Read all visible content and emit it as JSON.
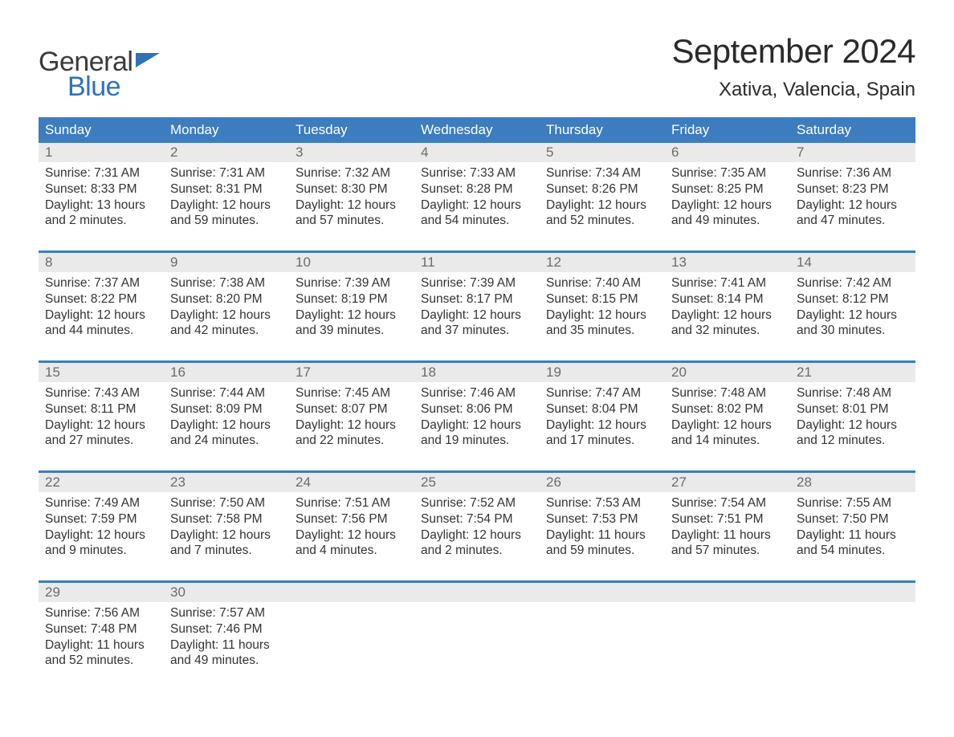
{
  "logo": {
    "word1": "General",
    "word2": "Blue",
    "flag_color": "#2f73b5"
  },
  "title": "September 2024",
  "subtitle": "Xativa, Valencia, Spain",
  "header_bg": "#3d7cbf",
  "header_fg": "#ffffff",
  "strip_bg": "#eaeaea",
  "strip_fg": "#6b6b6b",
  "text_color": "#333333",
  "day_names": [
    "Sunday",
    "Monday",
    "Tuesday",
    "Wednesday",
    "Thursday",
    "Friday",
    "Saturday"
  ],
  "weeks": [
    [
      {
        "n": "1",
        "sunrise": "7:31 AM",
        "sunset": "8:33 PM",
        "dl1": "Daylight: 13 hours",
        "dl2": "and 2 minutes."
      },
      {
        "n": "2",
        "sunrise": "7:31 AM",
        "sunset": "8:31 PM",
        "dl1": "Daylight: 12 hours",
        "dl2": "and 59 minutes."
      },
      {
        "n": "3",
        "sunrise": "7:32 AM",
        "sunset": "8:30 PM",
        "dl1": "Daylight: 12 hours",
        "dl2": "and 57 minutes."
      },
      {
        "n": "4",
        "sunrise": "7:33 AM",
        "sunset": "8:28 PM",
        "dl1": "Daylight: 12 hours",
        "dl2": "and 54 minutes."
      },
      {
        "n": "5",
        "sunrise": "7:34 AM",
        "sunset": "8:26 PM",
        "dl1": "Daylight: 12 hours",
        "dl2": "and 52 minutes."
      },
      {
        "n": "6",
        "sunrise": "7:35 AM",
        "sunset": "8:25 PM",
        "dl1": "Daylight: 12 hours",
        "dl2": "and 49 minutes."
      },
      {
        "n": "7",
        "sunrise": "7:36 AM",
        "sunset": "8:23 PM",
        "dl1": "Daylight: 12 hours",
        "dl2": "and 47 minutes."
      }
    ],
    [
      {
        "n": "8",
        "sunrise": "7:37 AM",
        "sunset": "8:22 PM",
        "dl1": "Daylight: 12 hours",
        "dl2": "and 44 minutes."
      },
      {
        "n": "9",
        "sunrise": "7:38 AM",
        "sunset": "8:20 PM",
        "dl1": "Daylight: 12 hours",
        "dl2": "and 42 minutes."
      },
      {
        "n": "10",
        "sunrise": "7:39 AM",
        "sunset": "8:19 PM",
        "dl1": "Daylight: 12 hours",
        "dl2": "and 39 minutes."
      },
      {
        "n": "11",
        "sunrise": "7:39 AM",
        "sunset": "8:17 PM",
        "dl1": "Daylight: 12 hours",
        "dl2": "and 37 minutes."
      },
      {
        "n": "12",
        "sunrise": "7:40 AM",
        "sunset": "8:15 PM",
        "dl1": "Daylight: 12 hours",
        "dl2": "and 35 minutes."
      },
      {
        "n": "13",
        "sunrise": "7:41 AM",
        "sunset": "8:14 PM",
        "dl1": "Daylight: 12 hours",
        "dl2": "and 32 minutes."
      },
      {
        "n": "14",
        "sunrise": "7:42 AM",
        "sunset": "8:12 PM",
        "dl1": "Daylight: 12 hours",
        "dl2": "and 30 minutes."
      }
    ],
    [
      {
        "n": "15",
        "sunrise": "7:43 AM",
        "sunset": "8:11 PM",
        "dl1": "Daylight: 12 hours",
        "dl2": "and 27 minutes."
      },
      {
        "n": "16",
        "sunrise": "7:44 AM",
        "sunset": "8:09 PM",
        "dl1": "Daylight: 12 hours",
        "dl2": "and 24 minutes."
      },
      {
        "n": "17",
        "sunrise": "7:45 AM",
        "sunset": "8:07 PM",
        "dl1": "Daylight: 12 hours",
        "dl2": "and 22 minutes."
      },
      {
        "n": "18",
        "sunrise": "7:46 AM",
        "sunset": "8:06 PM",
        "dl1": "Daylight: 12 hours",
        "dl2": "and 19 minutes."
      },
      {
        "n": "19",
        "sunrise": "7:47 AM",
        "sunset": "8:04 PM",
        "dl1": "Daylight: 12 hours",
        "dl2": "and 17 minutes."
      },
      {
        "n": "20",
        "sunrise": "7:48 AM",
        "sunset": "8:02 PM",
        "dl1": "Daylight: 12 hours",
        "dl2": "and 14 minutes."
      },
      {
        "n": "21",
        "sunrise": "7:48 AM",
        "sunset": "8:01 PM",
        "dl1": "Daylight: 12 hours",
        "dl2": "and 12 minutes."
      }
    ],
    [
      {
        "n": "22",
        "sunrise": "7:49 AM",
        "sunset": "7:59 PM",
        "dl1": "Daylight: 12 hours",
        "dl2": "and 9 minutes."
      },
      {
        "n": "23",
        "sunrise": "7:50 AM",
        "sunset": "7:58 PM",
        "dl1": "Daylight: 12 hours",
        "dl2": "and 7 minutes."
      },
      {
        "n": "24",
        "sunrise": "7:51 AM",
        "sunset": "7:56 PM",
        "dl1": "Daylight: 12 hours",
        "dl2": "and 4 minutes."
      },
      {
        "n": "25",
        "sunrise": "7:52 AM",
        "sunset": "7:54 PM",
        "dl1": "Daylight: 12 hours",
        "dl2": "and 2 minutes."
      },
      {
        "n": "26",
        "sunrise": "7:53 AM",
        "sunset": "7:53 PM",
        "dl1": "Daylight: 11 hours",
        "dl2": "and 59 minutes."
      },
      {
        "n": "27",
        "sunrise": "7:54 AM",
        "sunset": "7:51 PM",
        "dl1": "Daylight: 11 hours",
        "dl2": "and 57 minutes."
      },
      {
        "n": "28",
        "sunrise": "7:55 AM",
        "sunset": "7:50 PM",
        "dl1": "Daylight: 11 hours",
        "dl2": "and 54 minutes."
      }
    ],
    [
      {
        "n": "29",
        "sunrise": "7:56 AM",
        "sunset": "7:48 PM",
        "dl1": "Daylight: 11 hours",
        "dl2": "and 52 minutes."
      },
      {
        "n": "30",
        "sunrise": "7:57 AM",
        "sunset": "7:46 PM",
        "dl1": "Daylight: 11 hours",
        "dl2": "and 49 minutes."
      },
      {
        "n": "",
        "empty": true
      },
      {
        "n": "",
        "empty": true
      },
      {
        "n": "",
        "empty": true
      },
      {
        "n": "",
        "empty": true
      },
      {
        "n": "",
        "empty": true
      }
    ]
  ]
}
